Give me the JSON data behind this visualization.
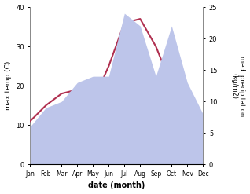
{
  "months": [
    "Jan",
    "Feb",
    "Mar",
    "Apr",
    "May",
    "Jun",
    "Jul",
    "Aug",
    "Sep",
    "Oct",
    "Nov",
    "Dec"
  ],
  "temperature": [
    11,
    15,
    18,
    19,
    16,
    25,
    36,
    37,
    30,
    20,
    13,
    8
  ],
  "precipitation": [
    6,
    9,
    10,
    13,
    14,
    14,
    24,
    22,
    14,
    22,
    13,
    8
  ],
  "temp_color": "#b03050",
  "precip_fill": "#bdc5ea",
  "background": "#ffffff",
  "ylabel_left": "max temp (C)",
  "ylabel_right": "med. precipitation\n(kg/m2)",
  "xlabel": "date (month)",
  "ylim_left": [
    0,
    40
  ],
  "ylim_right": [
    0,
    25
  ],
  "temp_linewidth": 1.5,
  "spine_color": "#888888"
}
